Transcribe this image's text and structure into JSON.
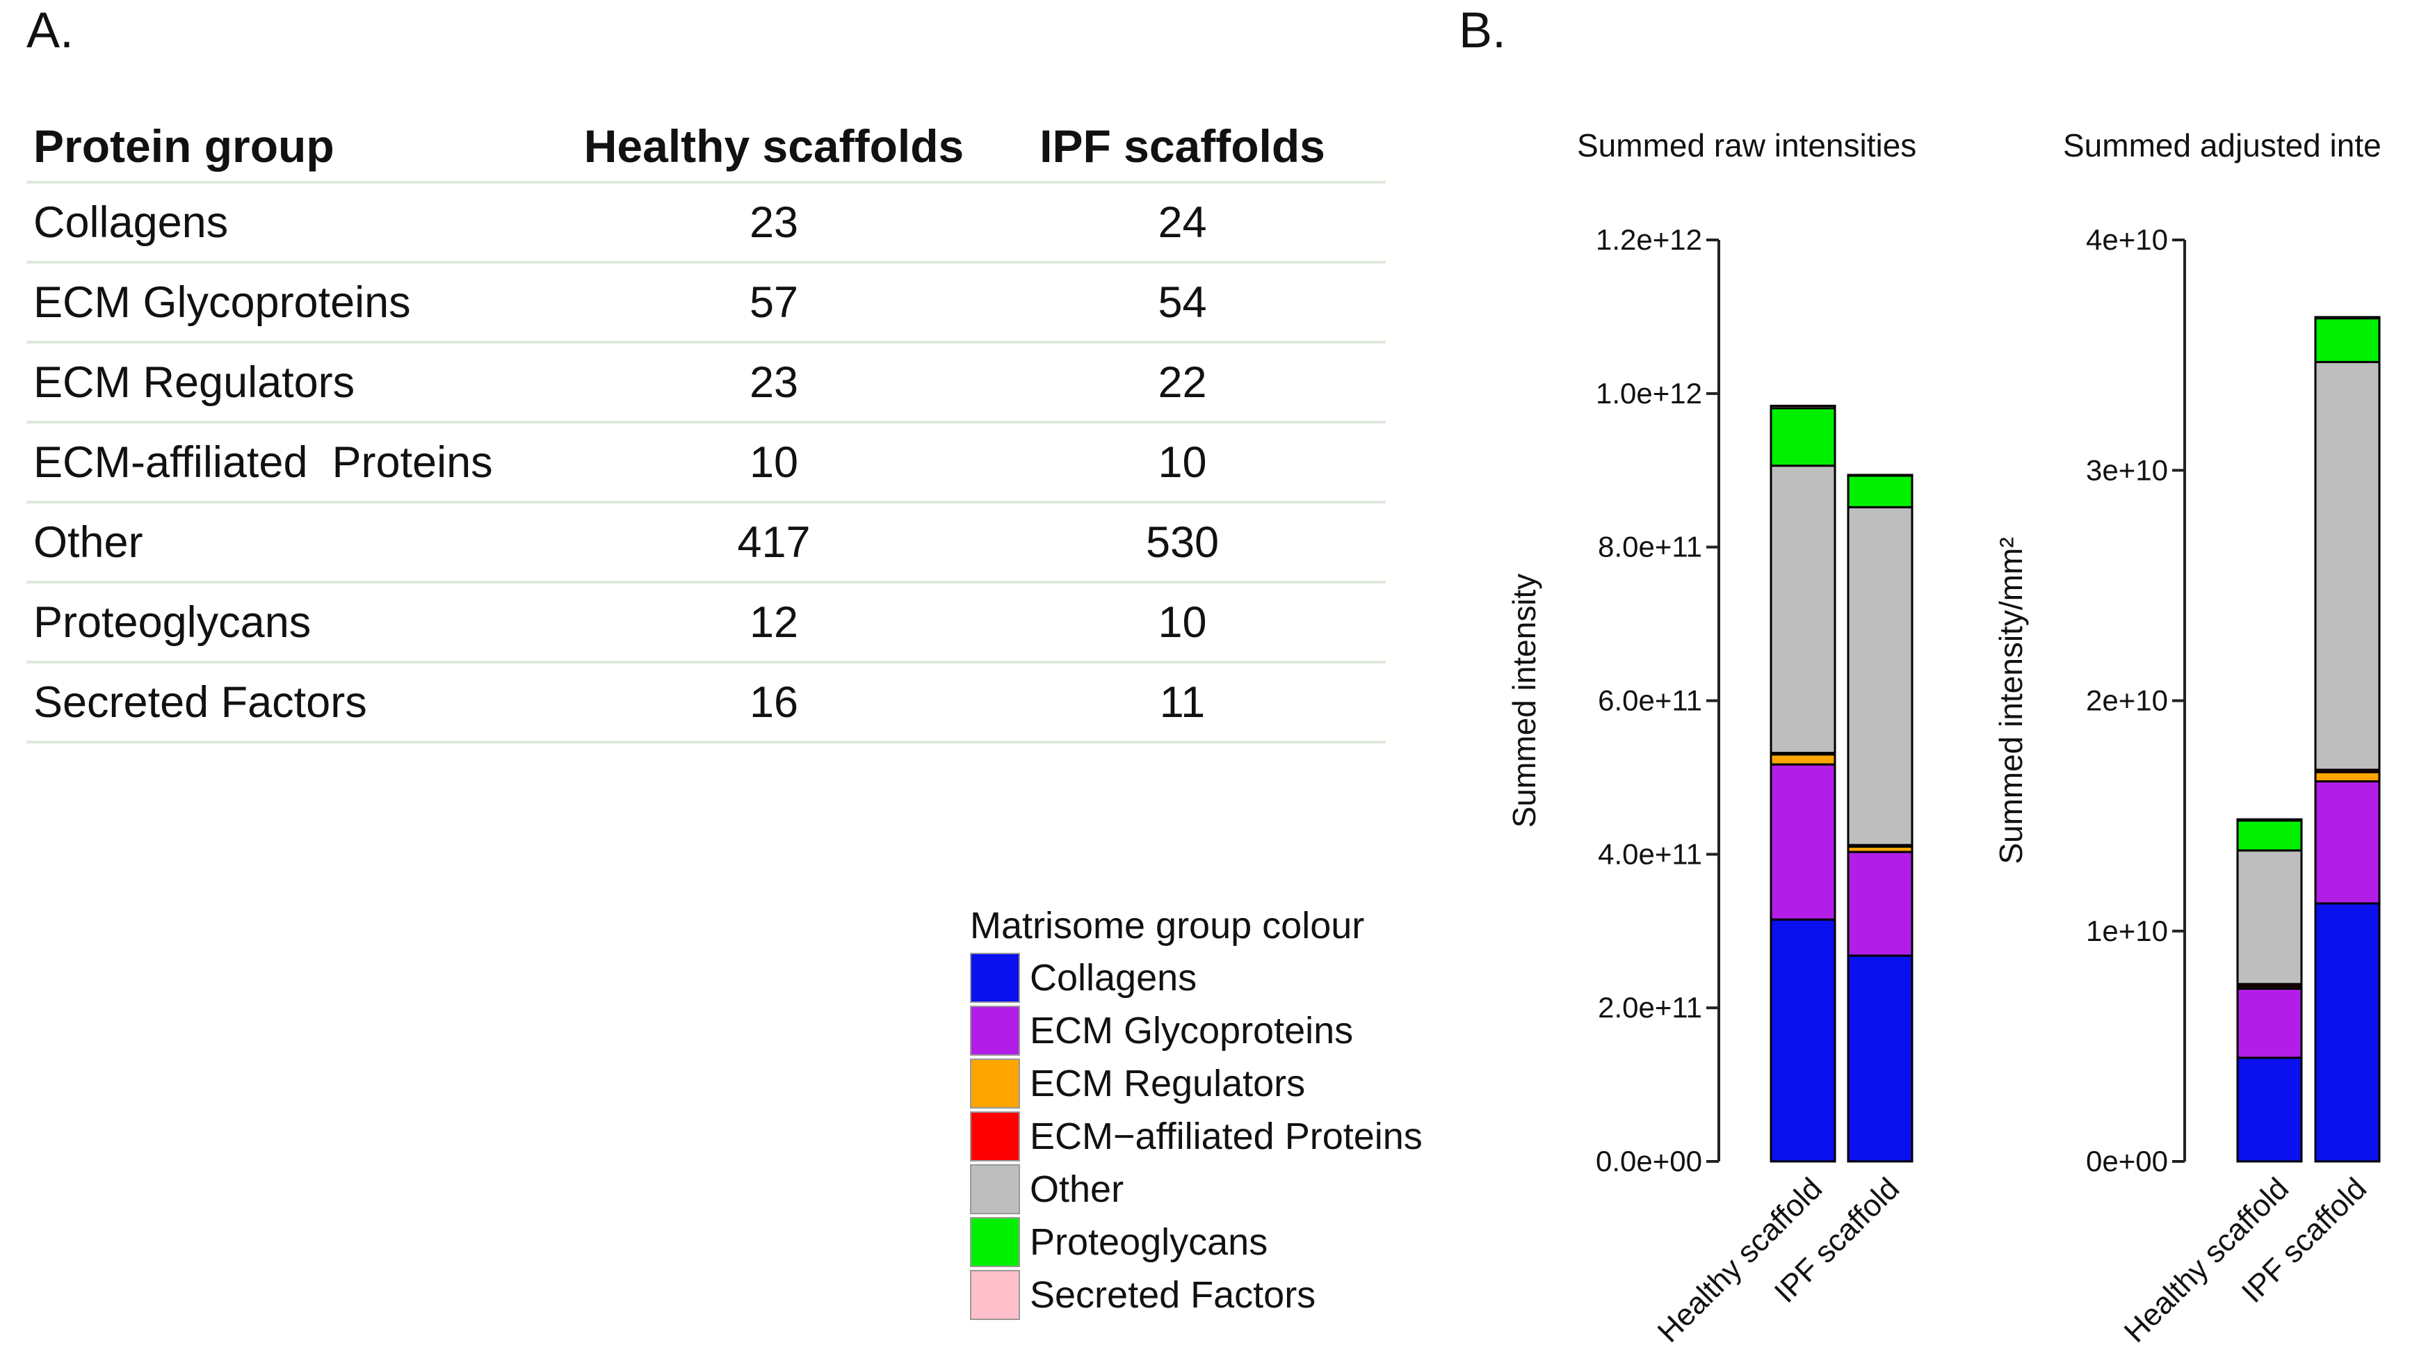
{
  "panel_a_label": "A.",
  "panel_b_label": "B.",
  "table": {
    "headers": [
      "Protein group",
      "Healthy scaffolds",
      "IPF scaffolds"
    ],
    "rows": [
      [
        "Collagens",
        "23",
        "24"
      ],
      [
        "ECM Glycoproteins",
        "57",
        "54"
      ],
      [
        "ECM Regulators",
        "23",
        "22"
      ],
      [
        "ECM-affiliated  Proteins",
        "10",
        "10"
      ],
      [
        "Other",
        "417",
        "530"
      ],
      [
        "Proteoglycans",
        "12",
        "10"
      ],
      [
        "Secreted Factors",
        "16",
        "11"
      ]
    ]
  },
  "legend": {
    "title": "Matrisome group colour",
    "items": [
      {
        "label": "Collagens",
        "color": "#0a10ee"
      },
      {
        "label": "ECM Glycoproteins",
        "color": "#b21ee8"
      },
      {
        "label": "ECM Regulators",
        "color": "#ffa500"
      },
      {
        "label": "ECM−affiliated Proteins",
        "color": "#ff0000"
      },
      {
        "label": "Other",
        "color": "#bebebe"
      },
      {
        "label": "Proteoglycans",
        "color": "#00f000"
      },
      {
        "label": "Secreted Factors",
        "color": "#ffc0cb"
      }
    ]
  },
  "chart_data": [
    {
      "type": "bar",
      "stacked": true,
      "title": "Summed raw intensities",
      "ylabel": "Summed intensity",
      "xlabel": "",
      "categories": [
        "Healthy scaffold",
        "IPF scaffold"
      ],
      "ylim": [
        0,
        1200000000000.0
      ],
      "yticks": [
        0,
        200000000000.0,
        400000000000.0,
        600000000000.0,
        800000000000.0,
        1000000000000.0,
        1200000000000.0
      ],
      "ytick_labels": [
        "0.0e+00",
        "2.0e+11",
        "4.0e+11",
        "6.0e+11",
        "8.0e+11",
        "1.0e+12",
        "1.2e+12"
      ],
      "series": [
        {
          "name": "Collagens",
          "values": [
            315000000000.0,
            268000000000.0
          ]
        },
        {
          "name": "ECM Glycoproteins",
          "values": [
            202000000000.0,
            135000000000.0
          ]
        },
        {
          "name": "ECM Regulators",
          "values": [
            13000000000.0,
            7000000000.0
          ]
        },
        {
          "name": "ECM−affiliated Proteins",
          "values": [
            2000000000.0,
            2000000000.0
          ]
        },
        {
          "name": "Other",
          "values": [
            374000000000.0,
            440000000000.0
          ]
        },
        {
          "name": "Proteoglycans",
          "values": [
            75000000000.0,
            41000000000.0
          ]
        },
        {
          "name": "Secreted Factors",
          "values": [
            3000000000.0,
            1000000000.0
          ]
        }
      ]
    },
    {
      "type": "bar",
      "stacked": true,
      "title": "Summed adjusted inte",
      "ylabel": "Summed intensity/mm²",
      "xlabel": "",
      "categories": [
        "Healthy scaffold",
        "IPF scaffold"
      ],
      "ylim": [
        0,
        40000000000.0
      ],
      "yticks": [
        0,
        10000000000.0,
        20000000000.0,
        30000000000.0,
        40000000000.0
      ],
      "ytick_labels": [
        "0e+00",
        "1e+10",
        "2e+10",
        "3e+10",
        "4e+10"
      ],
      "series": [
        {
          "name": "Collagens",
          "values": [
            4500000000.0,
            11200000000.0
          ]
        },
        {
          "name": "ECM Glycoproteins",
          "values": [
            3000000000.0,
            5300000000.0
          ]
        },
        {
          "name": "ECM Regulators",
          "values": [
            100000000.0,
            400000000.0
          ]
        },
        {
          "name": "ECM−affiliated Proteins",
          "values": [
            100000000.0,
            100000000.0
          ]
        },
        {
          "name": "Other",
          "values": [
            5800000000.0,
            17700000000.0
          ]
        },
        {
          "name": "Proteoglycans",
          "values": [
            1300000000.0,
            1900000000.0
          ]
        },
        {
          "name": "Secreted Factors",
          "values": [
            50000000.0,
            50000000.0
          ]
        }
      ]
    }
  ]
}
